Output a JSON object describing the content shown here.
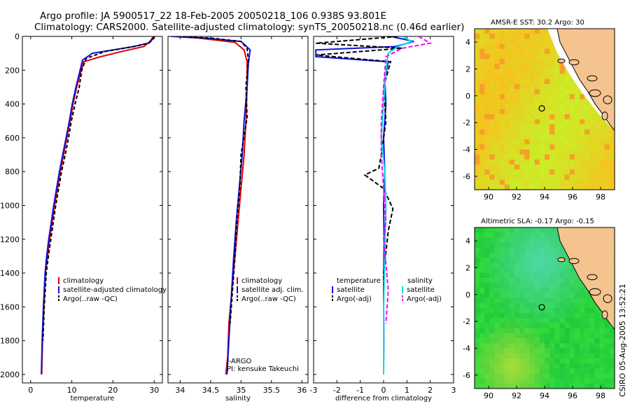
{
  "header": {
    "line1": "Argo profile: JA 5900517_22 18-Feb-2005 20050218_106 0.938S 93.801E",
    "line2": "Climatology: CARS2000. Satellite-adjusted climatology: synTS_20050218.nc (0.46d earlier)"
  },
  "stamp": "CSIRO 05-Aug-2005 13:52:21",
  "colors": {
    "climatology": "#e00000",
    "satellite": "#1010e0",
    "argo": "#000000",
    "sal_satellite": "#00e0e0",
    "sal_argo": "#ff00ff",
    "land": "#f5c38e",
    "coast": "#000000"
  },
  "chart_data": [
    {
      "type": "line",
      "id": "temperature",
      "xlabel": "temperature",
      "ylabel": "",
      "xlim": [
        -2,
        32
      ],
      "ylim": [
        2050,
        0
      ],
      "xticks": [
        0,
        10,
        20,
        30
      ],
      "yticks": [
        0,
        200,
        400,
        600,
        800,
        1000,
        1200,
        1400,
        1600,
        1800,
        2000
      ],
      "legend": [
        "climatology",
        "satellite-adjusted climatology",
        "Argo(..raw -QC)"
      ],
      "series": [
        {
          "name": "climatology",
          "color": "climatology",
          "dash": "",
          "x": [
            29.8,
            29.0,
            27.5,
            22,
            17,
            12.9,
            12.3,
            11.2,
            10.3,
            9.6,
            8.8,
            8.0,
            7.2,
            6.5,
            5.8,
            5.2,
            4.6,
            4.1,
            3.6,
            3.2,
            2.9,
            2.7
          ],
          "y": [
            0,
            30,
            60,
            90,
            120,
            150,
            200,
            300,
            400,
            500,
            600,
            700,
            800,
            900,
            1000,
            1100,
            1200,
            1300,
            1400,
            1600,
            1800,
            2000
          ]
        },
        {
          "name": "satellite-adjusted climatology",
          "color": "satellite",
          "dash": "",
          "x": [
            30.0,
            29.5,
            28.5,
            25,
            20,
            15,
            12.6,
            12.0,
            11.0,
            10.1,
            9.4,
            8.6,
            7.8,
            7.0,
            6.3,
            5.6,
            5.0,
            4.4,
            3.9,
            3.5,
            3.1,
            2.8,
            2.6
          ],
          "y": [
            0,
            20,
            40,
            60,
            80,
            100,
            140,
            200,
            300,
            400,
            500,
            600,
            700,
            800,
            900,
            1000,
            1100,
            1200,
            1300,
            1400,
            1600,
            1800,
            2000
          ]
        },
        {
          "name": "Argo(..raw -QC)",
          "color": "argo",
          "dash": "5,3",
          "x": [
            30.1,
            29.6,
            28.7,
            25,
            18,
            13.5,
            12.4,
            11.8,
            10.8,
            9.9,
            9.2,
            8.4,
            7.5,
            6.8,
            6.1,
            5.5,
            4.9,
            4.3,
            3.8,
            3.3,
            3.0
          ],
          "y": [
            0,
            20,
            40,
            60,
            90,
            130,
            200,
            300,
            400,
            500,
            600,
            700,
            800,
            900,
            1000,
            1100,
            1200,
            1300,
            1400,
            1600,
            1800
          ]
        }
      ]
    },
    {
      "type": "line",
      "id": "salinity",
      "xlabel": "salinity",
      "ylabel": "",
      "xlim": [
        33.8,
        36.1
      ],
      "ylim": [
        2050,
        0
      ],
      "xticks": [
        34,
        34.5,
        35,
        35.5,
        36
      ],
      "legend": [
        "climatology",
        "satellite adj. clim.",
        "Argo(..raw -QC)"
      ],
      "annotation": [
        "J-ARGO",
        "PI: kensuke Takeuchi"
      ],
      "series": [
        {
          "name": "climatology",
          "color": "climatology",
          "dash": "",
          "x": [
            33.9,
            34.3,
            34.9,
            35.05,
            35.1,
            35.1,
            35.08,
            35.05,
            35.0,
            34.95,
            34.9,
            34.85,
            34.8,
            34.78,
            34.75
          ],
          "y": [
            0,
            10,
            35,
            80,
            150,
            300,
            500,
            700,
            900,
            1100,
            1300,
            1500,
            1700,
            1900,
            2000
          ]
        },
        {
          "name": "satellite adj. clim.",
          "color": "satellite",
          "dash": "",
          "x": [
            33.85,
            34.4,
            35.0,
            35.15,
            35.12,
            35.1,
            35.05,
            35.02,
            34.97,
            34.92,
            34.88,
            34.83,
            34.8,
            34.77
          ],
          "y": [
            0,
            10,
            30,
            80,
            160,
            300,
            500,
            700,
            900,
            1100,
            1300,
            1600,
            1800,
            2000
          ]
        },
        {
          "name": "Argo(..raw -QC)",
          "color": "argo",
          "dash": "5,3",
          "x": [
            33.95,
            34.5,
            35.0,
            35.1,
            35.12,
            35.08,
            35.1,
            35.0,
            34.98,
            34.93,
            34.9,
            34.86,
            34.82
          ],
          "y": [
            0,
            10,
            30,
            70,
            140,
            300,
            480,
            700,
            900,
            1100,
            1300,
            1500,
            1700
          ]
        }
      ]
    },
    {
      "type": "line",
      "id": "difference",
      "xlabel": "difference from climatology",
      "ylabel": "",
      "xlim": [
        -3,
        3
      ],
      "ylim": [
        2050,
        0
      ],
      "xticks": [
        -3,
        -2,
        -1,
        0,
        1,
        2,
        3
      ],
      "legend": {
        "left_title": "temperature",
        "left": [
          "satellite",
          "Argo(-adj)"
        ],
        "right_title": "salinity",
        "right": [
          "satellite",
          "Argo(-adj)"
        ]
      },
      "series": [
        {
          "name": "temperature satellite",
          "color": "satellite",
          "dash": "",
          "x": [
            0.3,
            1.3,
            0.5,
            -2.9,
            -2.9,
            0.2,
            0.05,
            0.1,
            0.0,
            0.05,
            0.0,
            0.02,
            0.0,
            0.01,
            0.0
          ],
          "y": [
            0,
            30,
            60,
            80,
            120,
            150,
            250,
            400,
            600,
            800,
            1000,
            1200,
            1500,
            1800,
            2000
          ]
        },
        {
          "name": "temperature Argo(-adj)",
          "color": "argo",
          "dash": "6,3",
          "x": [
            0.6,
            -2.9,
            0.8,
            -2.9,
            0.3,
            0.0,
            0.1,
            -0.1,
            -0.2,
            -0.8,
            0.0,
            0.4,
            0.2,
            0.0,
            0.0
          ],
          "y": [
            0,
            40,
            70,
            110,
            150,
            300,
            500,
            700,
            780,
            820,
            900,
            1020,
            1150,
            1400,
            1800
          ]
        },
        {
          "name": "salinity satellite",
          "color": "sal_satellite",
          "dash": "",
          "x": [
            0.8,
            1.2,
            0.6,
            0.2,
            0.1,
            0.0,
            -0.1,
            0.05,
            0.1,
            0.05,
            0.0,
            0.0
          ],
          "y": [
            0,
            30,
            60,
            100,
            200,
            400,
            600,
            800,
            1000,
            1300,
            1600,
            2000
          ]
        },
        {
          "name": "salinity Argo(-adj)",
          "color": "sal_argo",
          "dash": "6,3",
          "x": [
            1.5,
            2.0,
            0.8,
            0.1,
            0.0,
            -0.1,
            -0.1,
            0.0,
            0.1,
            0.0,
            0.2,
            0.1
          ],
          "y": [
            0,
            40,
            70,
            120,
            300,
            500,
            700,
            900,
            1100,
            1200,
            1500,
            1700
          ]
        }
      ]
    },
    {
      "type": "heatmap",
      "id": "sst_map",
      "title": "AMSR-E SST: 30.2 Argo: 30",
      "xlim": [
        89,
        99
      ],
      "ylim": [
        -7,
        5
      ],
      "xticks": [
        90,
        92,
        94,
        96,
        98
      ],
      "yticks": [
        4,
        2,
        0,
        -2,
        -4,
        -6
      ],
      "marker": {
        "lon": 93.8,
        "lat": -0.94
      }
    },
    {
      "type": "heatmap",
      "id": "sla_map",
      "title": "Altimetric SLA: -0.17 Argo: -0.15",
      "xlim": [
        89,
        99
      ],
      "ylim": [
        -7,
        5
      ],
      "xticks": [
        90,
        92,
        94,
        96,
        98
      ],
      "yticks": [
        4,
        2,
        0,
        -2,
        -4,
        -6
      ],
      "marker": {
        "lon": 93.8,
        "lat": -0.94
      }
    }
  ]
}
